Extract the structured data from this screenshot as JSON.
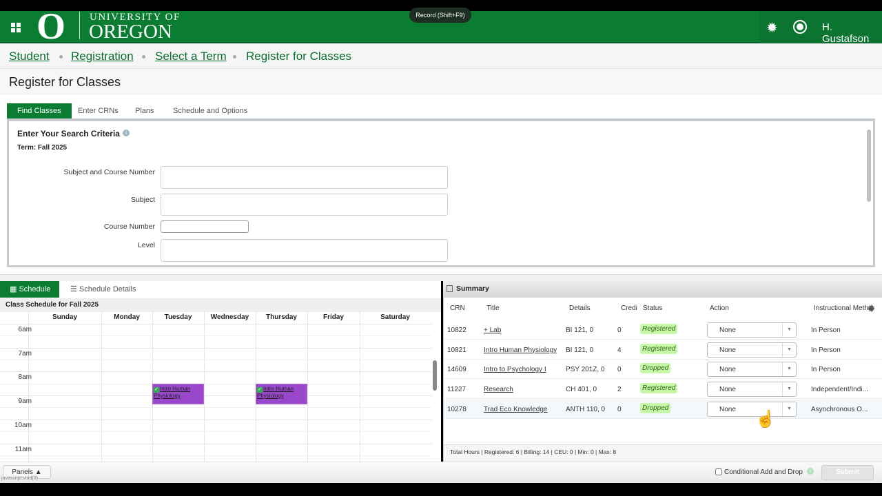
{
  "header": {
    "logo_letter": "O",
    "logo_top": "UNIVERSITY OF",
    "logo_main": "OREGON",
    "record_tooltip": "Record (Shift+F9)",
    "user_name": "H. Gustafson",
    "brand_color": "#0a7d33"
  },
  "breadcrumb": [
    "Student",
    "Registration",
    "Select a Term",
    "Register for Classes"
  ],
  "page_title": "Register for Classes",
  "tabs": [
    "Find Classes",
    "Enter CRNs",
    "Plans",
    "Schedule and Options"
  ],
  "search": {
    "heading": "Enter Your Search Criteria",
    "term": "Term: Fall 2025",
    "fields": [
      {
        "label": "Subject and Course Number",
        "value": ""
      },
      {
        "label": "Subject",
        "value": ""
      },
      {
        "label": "Course Number",
        "value": ""
      },
      {
        "label": "Level",
        "value": ""
      }
    ]
  },
  "schedule": {
    "tabs": [
      "Schedule",
      "Schedule Details"
    ],
    "title": "Class Schedule for Fall 2025",
    "days": [
      "Sunday",
      "Monday",
      "Tuesday",
      "Wednesday",
      "Thursday",
      "Friday",
      "Saturday"
    ],
    "hours": [
      "6am",
      "7am",
      "8am",
      "9am",
      "10am",
      "11am"
    ],
    "events": [
      {
        "day": "Tuesday",
        "title": "Intro Human Physiology",
        "start": "8:30",
        "end": "9:50",
        "color": "#9948cc"
      },
      {
        "day": "Thursday",
        "title": "Intro Human Physiology",
        "start": "8:30",
        "end": "9:50",
        "color": "#9948cc"
      }
    ]
  },
  "summary": {
    "title": "Summary",
    "columns": [
      "CRN",
      "Title",
      "Details",
      "Credi",
      "Status",
      "Action",
      "Instructional Meth"
    ],
    "rows": [
      {
        "crn": "10822",
        "title": "+ Lab",
        "details": "BI 121, 0",
        "credits": "0",
        "status": "Registered",
        "action": "None",
        "method": "In Person"
      },
      {
        "crn": "10821",
        "title": "Intro Human Physiology",
        "details": "BI 121, 0",
        "credits": "4",
        "status": "Registered",
        "action": "None",
        "method": "In Person"
      },
      {
        "crn": "14609",
        "title": "Intro to Psychology I",
        "details": "PSY 201Z, 0",
        "credits": "0",
        "status": "Dropped",
        "action": "None",
        "method": "In Person"
      },
      {
        "crn": "11227",
        "title": "Research",
        "details": "CH 401, 0",
        "credits": "2",
        "status": "Registered",
        "action": "None",
        "method": "Independent/Indi..."
      },
      {
        "crn": "10278",
        "title": "Trad Eco Knowledge",
        "details": "ANTH 110, 0",
        "credits": "0",
        "status": "Dropped",
        "action": "None",
        "method": "Asynchronous O..."
      }
    ],
    "totals": "Total Hours | Registered: 6 | Billing: 14 | CEU: 0 | Min: 0 | Max: 8"
  },
  "footer": {
    "panels": "Panels",
    "status_text": "javascript:void(0)",
    "conditional": "Conditional Add and Drop",
    "submit": "Submit"
  }
}
